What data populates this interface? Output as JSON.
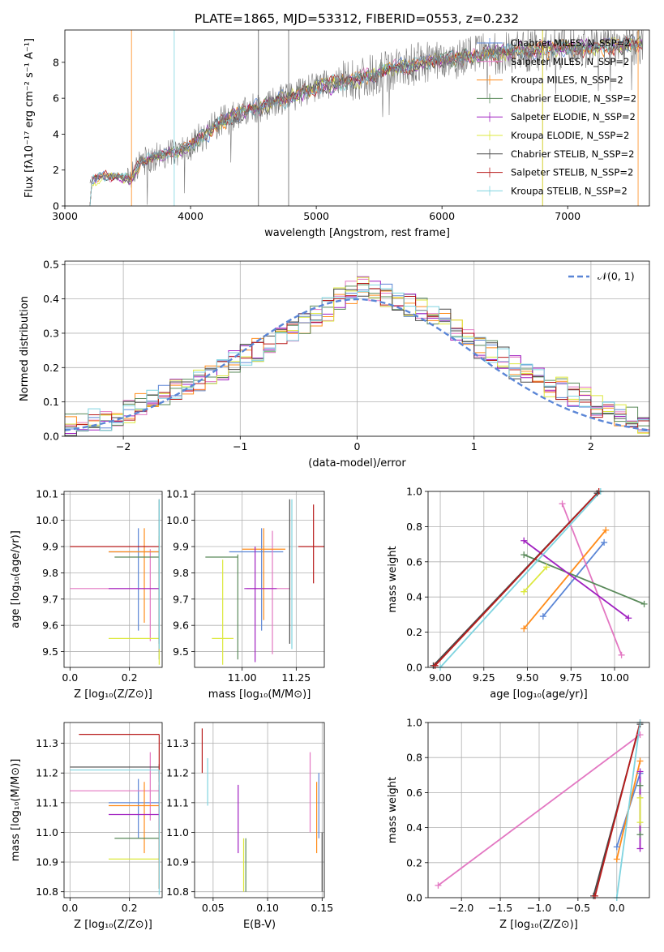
{
  "page": {
    "title": "PLATE=1865, MJD=53312, FIBERID=0553, z=0.232"
  },
  "chart_data": [
    {
      "id": "spectrum",
      "type": "line",
      "xlabel": "wavelength [Angstrom, rest frame]",
      "ylabel": "Flux [fλ10⁻¹⁷ erg cm⁻² s⁻¹ A⁻¹]",
      "xlim": [
        3000,
        7650
      ],
      "ylim": [
        0,
        9.8
      ],
      "xticks": [
        3000,
        4000,
        5000,
        6000,
        7000
      ],
      "yticks": [
        0,
        2,
        4,
        6,
        8
      ],
      "grid": false,
      "legend_position": "right",
      "data_envelope": {
        "x": [
          3200,
          3300,
          3400,
          3520,
          3600,
          3700,
          3800,
          3900,
          4000,
          4100,
          4200,
          4400,
          4600,
          4800,
          5000,
          5200,
          5400,
          5600,
          5800,
          6000,
          6200,
          6400,
          6600,
          6800,
          7000,
          7200,
          7400,
          7600
        ],
        "y": [
          1.4,
          1.6,
          1.7,
          1.5,
          2.4,
          2.7,
          2.9,
          3.0,
          3.4,
          3.9,
          4.5,
          5.2,
          5.6,
          6.1,
          6.6,
          6.9,
          7.2,
          7.6,
          7.9,
          8.2,
          8.3,
          8.5,
          8.6,
          8.7,
          8.8,
          8.9,
          8.9,
          9.0
        ]
      },
      "series": [
        {
          "name": "Chabrier MILES, N_SSP=2",
          "color": "#5b86d6"
        },
        {
          "name": "Salpeter MILES, N_SSP=2",
          "color": "#e377c2"
        },
        {
          "name": "Kroupa MILES, N_SSP=2",
          "color": "#ff8c1a"
        },
        {
          "name": "Chabrier ELODIE, N_SSP=2",
          "color": "#5a8a5a"
        },
        {
          "name": "Salpeter ELODIE, N_SSP=2",
          "color": "#a020c0"
        },
        {
          "name": "Kroupa ELODIE, N_SSP=2",
          "color": "#dce83c"
        },
        {
          "name": "Chabrier STELIB, N_SSP=2",
          "color": "#4a4a4a"
        },
        {
          "name": "Salpeter STELIB, N_SSP=2",
          "color": "#b81c1c"
        },
        {
          "name": "Kroupa STELIB, N_SSP=2",
          "color": "#7fd4e0"
        }
      ]
    },
    {
      "id": "residuals",
      "type": "line",
      "xlabel": "(data-model)/error",
      "ylabel": "Normed distribution",
      "xlim": [
        -2.5,
        2.5
      ],
      "ylim": [
        0,
        0.51
      ],
      "xticks": [
        -2,
        -1,
        0,
        1,
        2
      ],
      "yticks": [
        0.0,
        0.1,
        0.2,
        0.3,
        0.4,
        0.5
      ],
      "grid": true,
      "legend_position": "top-right",
      "legend": "𝒩(0, 1)",
      "bin_width": 0.1,
      "bin_start": -2.5,
      "envelope": [
        0.03,
        0.04,
        0.05,
        0.05,
        0.06,
        0.07,
        0.09,
        0.11,
        0.12,
        0.14,
        0.15,
        0.16,
        0.17,
        0.19,
        0.22,
        0.24,
        0.25,
        0.27,
        0.29,
        0.31,
        0.33,
        0.35,
        0.37,
        0.4,
        0.42,
        0.43,
        0.42,
        0.41,
        0.4,
        0.38,
        0.37,
        0.35,
        0.34,
        0.31,
        0.28,
        0.26,
        0.25,
        0.23,
        0.2,
        0.18,
        0.17,
        0.15,
        0.14,
        0.12,
        0.11,
        0.09,
        0.07,
        0.06,
        0.05,
        0.04
      ]
    },
    {
      "id": "age_vs_Z",
      "type": "scatter",
      "xlabel": "Z [log₁₀(Z/Z⊙)]",
      "ylabel": "age  [log₁₀(age/yr)]",
      "xlim": [
        -0.02,
        0.31
      ],
      "ylim": [
        9.44,
        10.11
      ],
      "xticks": [
        0.0,
        0.2
      ],
      "yticks": [
        9.5,
        9.6,
        9.7,
        9.8,
        9.9,
        10.0,
        10.1
      ],
      "grid": true,
      "points": [
        {
          "x": 0.23,
          "y": 9.88,
          "xerr": [
            0.1,
            0.07
          ],
          "yerr": [
            0.3,
            0.09
          ],
          "color": "#5b86d6"
        },
        {
          "x": 0.27,
          "y": 9.74,
          "xerr": [
            0.27,
            0.03
          ],
          "yerr": [
            0.2,
            0.15
          ],
          "color": "#e377c2"
        },
        {
          "x": 0.25,
          "y": 9.88,
          "xerr": [
            0.12,
            0.05
          ],
          "yerr": [
            0.27,
            0.09
          ],
          "color": "#ff8c1a"
        },
        {
          "x": 0.3,
          "y": 9.86,
          "xerr": [
            0.15,
            0.0
          ],
          "yerr": [
            0.39,
            0.01
          ],
          "color": "#5a8a5a"
        },
        {
          "x": 0.3,
          "y": 9.74,
          "xerr": [
            0.17,
            0.0
          ],
          "yerr": [
            0.24,
            0.16
          ],
          "color": "#a020c0"
        },
        {
          "x": 0.3,
          "y": 9.55,
          "xerr": [
            0.17,
            0.0
          ],
          "yerr": [
            0.1,
            0.39
          ],
          "color": "#dce83c"
        },
        {
          "x": 0.3,
          "y": 10.08,
          "xerr": [
            0.0,
            0.0
          ],
          "yerr": [
            0.55,
            0.0
          ],
          "color": "#4a4a4a"
        },
        {
          "x": 0.3,
          "y": 9.9,
          "xerr": [
            0.3,
            0.0
          ],
          "yerr": [
            0.0,
            0.0
          ],
          "color": "#b81c1c"
        },
        {
          "x": 0.3,
          "y": 10.08,
          "xerr": [
            0.0,
            0.0
          ],
          "yerr": [
            0.57,
            0.0
          ],
          "color": "#7fd4e0"
        }
      ]
    },
    {
      "id": "age_vs_mass",
      "type": "scatter",
      "xlabel": "mass [log₁₀(M/M⊙)]",
      "xlim": [
        10.78,
        11.38
      ],
      "ylim": [
        9.44,
        10.11
      ],
      "xticks": [
        11.0,
        11.25
      ],
      "yticks": [
        9.5,
        9.6,
        9.7,
        9.8,
        9.9,
        10.0,
        10.1
      ],
      "grid": true,
      "points": [
        {
          "x": 11.09,
          "y": 9.88,
          "xerr": [
            0.15,
            0.1
          ],
          "yerr": [
            0.3,
            0.09
          ],
          "color": "#5b86d6"
        },
        {
          "x": 11.14,
          "y": 9.74,
          "xerr": [
            0.12,
            0.08
          ],
          "yerr": [
            0.25,
            0.22
          ],
          "color": "#e377c2"
        },
        {
          "x": 11.1,
          "y": 9.89,
          "xerr": [
            0.1,
            0.1
          ],
          "yerr": [
            0.27,
            0.08
          ],
          "color": "#ff8c1a"
        },
        {
          "x": 10.98,
          "y": 9.86,
          "xerr": [
            0.15,
            0.0
          ],
          "yerr": [
            0.39,
            0.01
          ],
          "color": "#5a8a5a"
        },
        {
          "x": 11.06,
          "y": 9.74,
          "xerr": [
            0.05,
            0.1
          ],
          "yerr": [
            0.28,
            0.16
          ],
          "color": "#a020c0"
        },
        {
          "x": 10.91,
          "y": 9.55,
          "xerr": [
            0.05,
            0.05
          ],
          "yerr": [
            0.1,
            0.3
          ],
          "color": "#dce83c"
        },
        {
          "x": 11.22,
          "y": 10.08,
          "xerr": [
            0.0,
            0.0
          ],
          "yerr": [
            0.55,
            0.0
          ],
          "color": "#4a4a4a"
        },
        {
          "x": 11.33,
          "y": 9.9,
          "xerr": [
            0.07,
            0.05
          ],
          "yerr": [
            0.14,
            0.16
          ],
          "color": "#b81c1c"
        },
        {
          "x": 11.23,
          "y": 10.08,
          "xerr": [
            0.0,
            0.0
          ],
          "yerr": [
            0.57,
            0.0
          ],
          "color": "#7fd4e0"
        }
      ]
    },
    {
      "id": "weight_vs_age",
      "type": "line",
      "xlabel": "age  [log₁₀(age/yr)]",
      "ylabel": "mass weight",
      "xlim": [
        8.93,
        10.2
      ],
      "ylim": [
        0,
        1.0
      ],
      "xticks": [
        9.0,
        9.25,
        9.5,
        9.75,
        10.0
      ],
      "yticks": [
        0.0,
        0.2,
        0.4,
        0.6,
        0.8,
        1.0
      ],
      "grid": true,
      "series": [
        {
          "color": "#5b86d6",
          "x": [
            9.59,
            9.94
          ],
          "y": [
            0.29,
            0.71
          ]
        },
        {
          "color": "#e377c2",
          "x": [
            9.7,
            10.04
          ],
          "y": [
            0.93,
            0.07
          ]
        },
        {
          "color": "#ff8c1a",
          "x": [
            9.48,
            9.95
          ],
          "y": [
            0.22,
            0.78
          ]
        },
        {
          "color": "#5a8a5a",
          "x": [
            9.48,
            10.17
          ],
          "y": [
            0.64,
            0.36
          ]
        },
        {
          "color": "#a020c0",
          "x": [
            9.48,
            10.08
          ],
          "y": [
            0.72,
            0.28
          ]
        },
        {
          "color": "#dce83c",
          "x": [
            9.48,
            9.61
          ],
          "y": [
            0.43,
            0.57
          ]
        },
        {
          "color": "#4a4a4a",
          "x": [
            8.96,
            9.9
          ],
          "y": [
            0.01,
            0.99
          ]
        },
        {
          "color": "#b81c1c",
          "x": [
            8.97,
            9.91
          ],
          "y": [
            0.01,
            1.0
          ]
        },
        {
          "color": "#7fd4e0",
          "x": [
            9.0,
            9.92
          ],
          "y": [
            0.0,
            1.0
          ]
        }
      ]
    },
    {
      "id": "mass_vs_Z",
      "type": "scatter",
      "xlabel": "Z [log₁₀(Z/Z⊙)]",
      "ylabel": "mass [log₁₀(M/M⊙)]",
      "xlim": [
        -0.02,
        0.31
      ],
      "ylim": [
        10.78,
        11.37
      ],
      "xticks": [
        0.0,
        0.2
      ],
      "yticks": [
        10.8,
        10.9,
        11.0,
        11.1,
        11.2,
        11.3
      ],
      "grid": true,
      "points": [
        {
          "x": 0.23,
          "y": 11.1,
          "xerr": [
            0.1,
            0.07
          ],
          "yerr": [
            0.12,
            0.08
          ],
          "color": "#5b86d6"
        },
        {
          "x": 0.27,
          "y": 11.14,
          "xerr": [
            0.27,
            0.03
          ],
          "yerr": [
            0.1,
            0.13
          ],
          "color": "#e377c2"
        },
        {
          "x": 0.25,
          "y": 11.09,
          "xerr": [
            0.12,
            0.05
          ],
          "yerr": [
            0.16,
            0.08
          ],
          "color": "#ff8c1a"
        },
        {
          "x": 0.3,
          "y": 10.98,
          "xerr": [
            0.15,
            0.0
          ],
          "yerr": [
            0.0,
            0.0
          ],
          "color": "#5a8a5a"
        },
        {
          "x": 0.3,
          "y": 11.06,
          "xerr": [
            0.17,
            0.0
          ],
          "yerr": [
            0.15,
            0.1
          ],
          "color": "#a020c0"
        },
        {
          "x": 0.3,
          "y": 10.91,
          "xerr": [
            0.17,
            0.0
          ],
          "yerr": [
            0.1,
            0.1
          ],
          "color": "#dce83c"
        },
        {
          "x": 0.3,
          "y": 11.22,
          "xerr": [
            0.3,
            0.0
          ],
          "yerr": [
            0.05,
            0.01
          ],
          "color": "#4a4a4a"
        },
        {
          "x": 0.3,
          "y": 11.33,
          "xerr": [
            0.27,
            0.0
          ],
          "yerr": [
            0.52,
            0.0
          ],
          "color": "#b81c1c"
        },
        {
          "x": 0.3,
          "y": 11.21,
          "xerr": [
            0.3,
            0.0
          ],
          "yerr": [
            0.42,
            0.0
          ],
          "color": "#7fd4e0"
        }
      ]
    },
    {
      "id": "mass_vs_ebv",
      "type": "scatter",
      "xlabel": "E(B-V)",
      "xlim": [
        0.033,
        0.152
      ],
      "ylim": [
        10.78,
        11.37
      ],
      "xticks": [
        0.05,
        0.1,
        0.15
      ],
      "yticks": [
        10.8,
        10.9,
        11.0,
        11.1,
        11.2,
        11.3
      ],
      "grid": true,
      "points": [
        {
          "x": 0.147,
          "y": 11.1,
          "xerr": [
            0.0,
            0.0
          ],
          "yerr": [
            0.12,
            0.1
          ],
          "color": "#5b86d6"
        },
        {
          "x": 0.139,
          "y": 11.14,
          "xerr": [
            0.0,
            0.0
          ],
          "yerr": [
            0.14,
            0.13
          ],
          "color": "#e377c2"
        },
        {
          "x": 0.145,
          "y": 11.09,
          "xerr": [
            0.0,
            0.0
          ],
          "yerr": [
            0.16,
            0.08
          ],
          "color": "#ff8c1a"
        },
        {
          "x": 0.08,
          "y": 10.9,
          "xerr": [
            0.0,
            0.0
          ],
          "yerr": [
            0.1,
            0.08
          ],
          "color": "#5a8a5a"
        },
        {
          "x": 0.073,
          "y": 11.05,
          "xerr": [
            0.0,
            0.0
          ],
          "yerr": [
            0.12,
            0.11
          ],
          "color": "#a020c0"
        },
        {
          "x": 0.078,
          "y": 10.88,
          "xerr": [
            0.0,
            0.0
          ],
          "yerr": [
            0.08,
            0.1
          ],
          "color": "#dce83c"
        },
        {
          "x": 0.15,
          "y": 10.9,
          "xerr": [
            0.0,
            0.0
          ],
          "yerr": [
            0.1,
            0.1
          ],
          "color": "#4a4a4a"
        },
        {
          "x": 0.04,
          "y": 11.3,
          "xerr": [
            0.0,
            0.0
          ],
          "yerr": [
            0.1,
            0.05
          ],
          "color": "#b81c1c"
        },
        {
          "x": 0.045,
          "y": 11.17,
          "xerr": [
            0.0,
            0.0
          ],
          "yerr": [
            0.08,
            0.08
          ],
          "color": "#7fd4e0"
        }
      ]
    },
    {
      "id": "weight_vs_Z",
      "type": "line",
      "xlabel": "Z [log₁₀(Z/Z⊙)]",
      "ylabel": "mass weight",
      "xlim": [
        -2.43,
        0.42
      ],
      "ylim": [
        0,
        1.0
      ],
      "xticks": [
        -2.0,
        -1.5,
        -1.0,
        -0.5,
        0.0
      ],
      "yticks": [
        0.0,
        0.2,
        0.4,
        0.6,
        0.8,
        1.0
      ],
      "grid": true,
      "series": [
        {
          "color": "#5b86d6",
          "x": [
            0.0,
            0.3
          ],
          "y": [
            0.29,
            0.71
          ]
        },
        {
          "color": "#e377c2",
          "x": [
            -2.3,
            0.3
          ],
          "y": [
            0.07,
            0.93
          ]
        },
        {
          "color": "#ff8c1a",
          "x": [
            0.0,
            0.3
          ],
          "y": [
            0.22,
            0.78
          ]
        },
        {
          "color": "#5a8a5a",
          "x": [
            0.3,
            0.3
          ],
          "y": [
            0.36,
            0.64
          ]
        },
        {
          "color": "#a020c0",
          "x": [
            0.3,
            0.3
          ],
          "y": [
            0.28,
            0.72
          ]
        },
        {
          "color": "#dce83c",
          "x": [
            0.3,
            0.3
          ],
          "y": [
            0.43,
            0.57
          ]
        },
        {
          "color": "#4a4a4a",
          "x": [
            -0.3,
            0.3
          ],
          "y": [
            0.01,
            0.99
          ]
        },
        {
          "color": "#b81c1c",
          "x": [
            -0.28,
            0.3
          ],
          "y": [
            0.01,
            1.0
          ]
        },
        {
          "color": "#7fd4e0",
          "x": [
            0.0,
            0.3
          ],
          "y": [
            0.0,
            1.0
          ]
        }
      ]
    }
  ]
}
